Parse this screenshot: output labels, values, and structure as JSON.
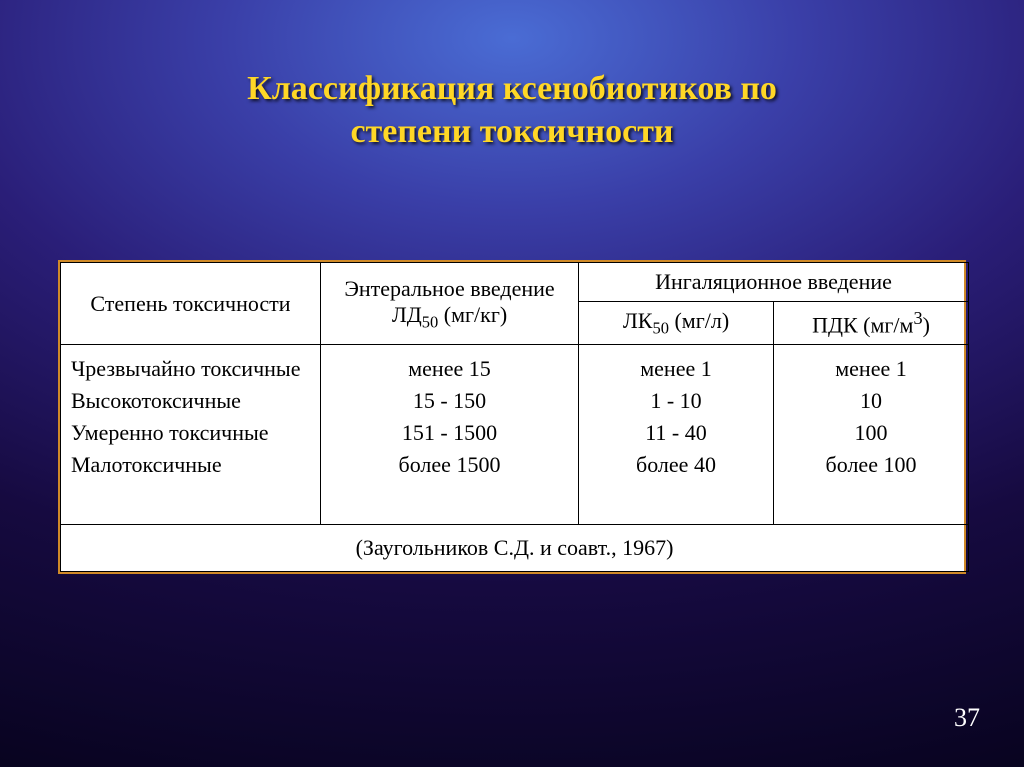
{
  "title_fontsize": 34,
  "table_fontsize": 22,
  "slidenum_fontsize": 26,
  "title_line1": "Классификация ксенобиотиков по",
  "title_line2": "степени токсичности",
  "header": {
    "degree": "Степень токсичности",
    "enteral_l1": "Энтеральное введение",
    "enteral_l2_pre": "ЛД",
    "enteral_l2_sub": "50",
    "enteral_l2_post": " (мг/кг)",
    "inhal": "Ингаляционное введение",
    "lk_pre": "ЛК",
    "lk_sub": "50",
    "lk_post": " (мг/л)",
    "pdk_pre": "ПДК (мг/м",
    "pdk_sup": "3",
    "pdk_post": ")"
  },
  "degrees": {
    "r1": "Чрезвычайно токсичные",
    "r2": "Высокотоксичные",
    "r3": "Умеренно токсичные",
    "r4": "Малотоксичные"
  },
  "enteral": {
    "r1": "менее 15",
    "r2": "15 - 150",
    "r3": "151 - 1500",
    "r4": "более 1500"
  },
  "lk": {
    "r1": "менее 1",
    "r2": "1 - 10",
    "r3": "11 - 40",
    "r4": "более 40"
  },
  "pdk": {
    "r1": "менее 1",
    "r2": "10",
    "r3": "100",
    "r4": "более 100"
  },
  "source": "(Заугольников С.Д. и соавт., 1967)",
  "slide_number": "37",
  "colors": {
    "title": "#ffd726",
    "table_border_outer": "#d08a28",
    "table_bg": "#ffffff",
    "cell_border": "#000000",
    "text": "#000000",
    "slidenum": "#ffffff"
  }
}
